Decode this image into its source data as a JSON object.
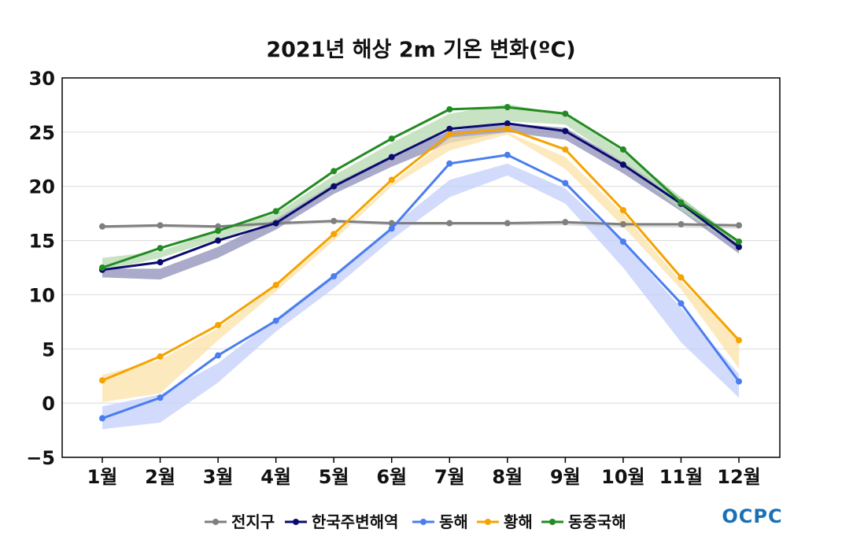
{
  "chart_data": {
    "type": "line",
    "title": "2021년 해상 2m 기온 변화(ºC)",
    "categories": [
      "1월",
      "2월",
      "3월",
      "4월",
      "5월",
      "6월",
      "7월",
      "8월",
      "9월",
      "10월",
      "11월",
      "12월"
    ],
    "ylim": [
      -5,
      30
    ],
    "yticks": [
      30,
      25,
      20,
      15,
      10,
      5,
      0,
      -5
    ],
    "ytick_labels": [
      "30",
      "25",
      "20",
      "15",
      "10",
      "5",
      "0",
      "−5"
    ],
    "grid": "horizontal",
    "legend_placement": "bottom",
    "series": [
      {
        "name": "전지구",
        "color": "#7f7f7f",
        "values": [
          16.3,
          16.4,
          16.3,
          16.6,
          16.8,
          16.6,
          16.6,
          16.6,
          16.7,
          16.5,
          16.5,
          16.4
        ],
        "band_low": [
          16.1,
          16.2,
          16.1,
          16.4,
          16.6,
          16.4,
          16.4,
          16.4,
          16.4,
          16.2,
          16.2,
          16.1
        ],
        "band_high": [
          16.3,
          16.4,
          16.4,
          16.6,
          16.8,
          16.7,
          16.7,
          16.7,
          16.8,
          16.6,
          16.5,
          16.4
        ],
        "band_color": "#d0d0d0"
      },
      {
        "name": "한국주변해역",
        "color": "#0b0b6e",
        "values": [
          12.3,
          13.0,
          15.0,
          16.6,
          20.0,
          22.7,
          25.3,
          25.8,
          25.1,
          22.0,
          18.4,
          14.4
        ],
        "band_low": [
          11.6,
          11.4,
          13.4,
          16.0,
          19.3,
          21.8,
          24.0,
          25.0,
          24.3,
          21.2,
          17.7,
          13.8
        ],
        "band_high": [
          12.4,
          12.4,
          14.4,
          17.0,
          20.3,
          22.8,
          25.1,
          25.8,
          25.4,
          22.3,
          18.9,
          15.0
        ],
        "band_color": "#8e8eb8"
      },
      {
        "name": "동해",
        "color": "#4a7df0",
        "values": [
          -1.4,
          0.5,
          4.4,
          7.6,
          11.7,
          16.1,
          22.1,
          22.9,
          20.3,
          14.9,
          9.2,
          2.0
        ],
        "band_low": [
          -2.4,
          -1.8,
          1.9,
          6.6,
          10.6,
          15.1,
          19.0,
          21.0,
          18.4,
          12.5,
          5.6,
          0.5
        ],
        "band_high": [
          -0.3,
          0.8,
          3.7,
          7.8,
          11.9,
          16.3,
          20.6,
          22.1,
          19.8,
          14.8,
          8.8,
          2.7
        ],
        "band_color": "#c4cffb"
      },
      {
        "name": "황해",
        "color": "#f5a300",
        "values": [
          2.1,
          4.3,
          7.2,
          10.9,
          15.6,
          20.6,
          24.8,
          25.3,
          23.4,
          17.8,
          11.6,
          5.8
        ],
        "band_low": [
          0.1,
          0.9,
          5.8,
          10.3,
          15.0,
          20.0,
          23.3,
          24.8,
          21.6,
          16.3,
          10.5,
          3.2
        ],
        "band_high": [
          2.6,
          4.0,
          6.9,
          10.8,
          15.4,
          20.3,
          24.5,
          25.0,
          22.7,
          17.5,
          11.2,
          6.0
        ],
        "band_color": "#fbe2a8"
      },
      {
        "name": "동중국해",
        "color": "#228b22",
        "values": [
          12.5,
          14.3,
          15.9,
          17.7,
          21.4,
          24.4,
          27.1,
          27.3,
          26.7,
          23.4,
          18.5,
          14.9
        ],
        "band_low": [
          12.2,
          13.4,
          15.1,
          16.9,
          20.1,
          22.8,
          25.2,
          26.0,
          25.7,
          22.1,
          17.8,
          14.4
        ],
        "band_high": [
          13.4,
          14.0,
          15.9,
          17.5,
          21.0,
          24.0,
          26.7,
          27.6,
          26.6,
          23.2,
          19.0,
          15.0
        ],
        "band_color": "#b5d9b0"
      }
    ]
  },
  "logo_text": "OCPC"
}
